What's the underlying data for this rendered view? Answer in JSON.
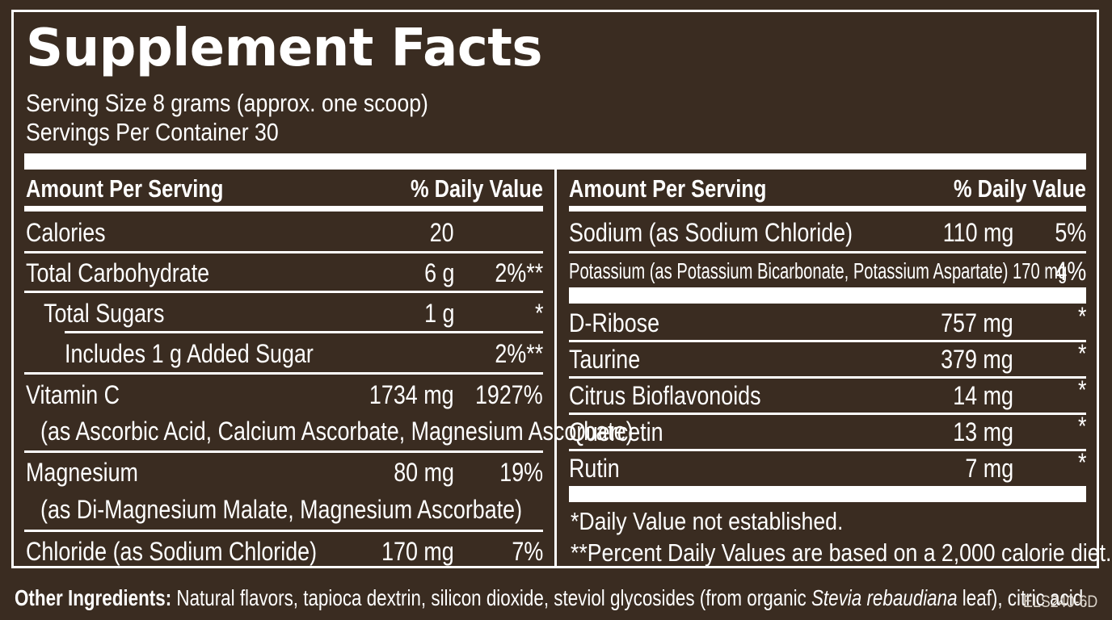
{
  "title": "Supplement Facts",
  "serving_size": "Serving Size 8 grams (approx. one scoop)",
  "servings_per_container": "Servings Per Container 30",
  "left_header": {
    "amount": "Amount Per Serving",
    "dv": "% Daily Value"
  },
  "right_header": {
    "amount": "Amount Per Serving",
    "dv": "% Daily Value"
  },
  "left_rows": [
    {
      "name": "Calories",
      "amount": "20",
      "dv": ""
    },
    {
      "name": "Total Carbohydrate",
      "amount": "6 g",
      "dv": "2%**"
    },
    {
      "name": "Total Sugars",
      "amount": "1 g",
      "dv": "*"
    },
    {
      "name": "Includes 1 g Added Sugar",
      "amount": "",
      "dv": "2%**"
    },
    {
      "name": "Vitamin C",
      "amount": "1734 mg",
      "dv": "1927%",
      "sub": "(as Ascorbic Acid, Calcium Ascorbate, Magnesium Ascorbate)"
    },
    {
      "name": "Magnesium",
      "amount": "80 mg",
      "dv": "19%",
      "sub": "(as Di-Magnesium Malate, Magnesium Ascorbate)"
    },
    {
      "name": "Chloride (as Sodium Chloride)",
      "amount": "170 mg",
      "dv": "7%"
    }
  ],
  "right_rows": [
    {
      "name": "Sodium (as Sodium Chloride)",
      "amount": "110 mg",
      "dv": "5%"
    },
    {
      "name": "Potassium (as Potassium Bicarbonate, Potassium Aspartate) 170 mg",
      "amount": "",
      "dv": "4%"
    },
    {
      "name": "D-Ribose",
      "amount": "757 mg",
      "dv": "*"
    },
    {
      "name": "Taurine",
      "amount": "379 mg",
      "dv": "*"
    },
    {
      "name": "Citrus Bioflavonoids",
      "amount": "14 mg",
      "dv": "*"
    },
    {
      "name": "Quercetin",
      "amount": "13 mg",
      "dv": "*"
    },
    {
      "name": "Rutin",
      "amount": "7 mg",
      "dv": "*"
    }
  ],
  "footnotes": {
    "not_established": "*Daily Value not established.",
    "percent_basis": "**Percent Daily Values are based on a 2,000 calorie diet."
  },
  "ingredients": {
    "label": "Other Ingredients:",
    "text_before": " Natural flavors, tapioca dextrin, silicon dioxide, steviol glycosides (from organic ",
    "italic": "Stevia rebaudiana",
    "text_after": " leaf), citric acid."
  },
  "product_code": "ELS240-6D",
  "colors": {
    "background": "#3a2c21",
    "text": "#ffffff"
  }
}
